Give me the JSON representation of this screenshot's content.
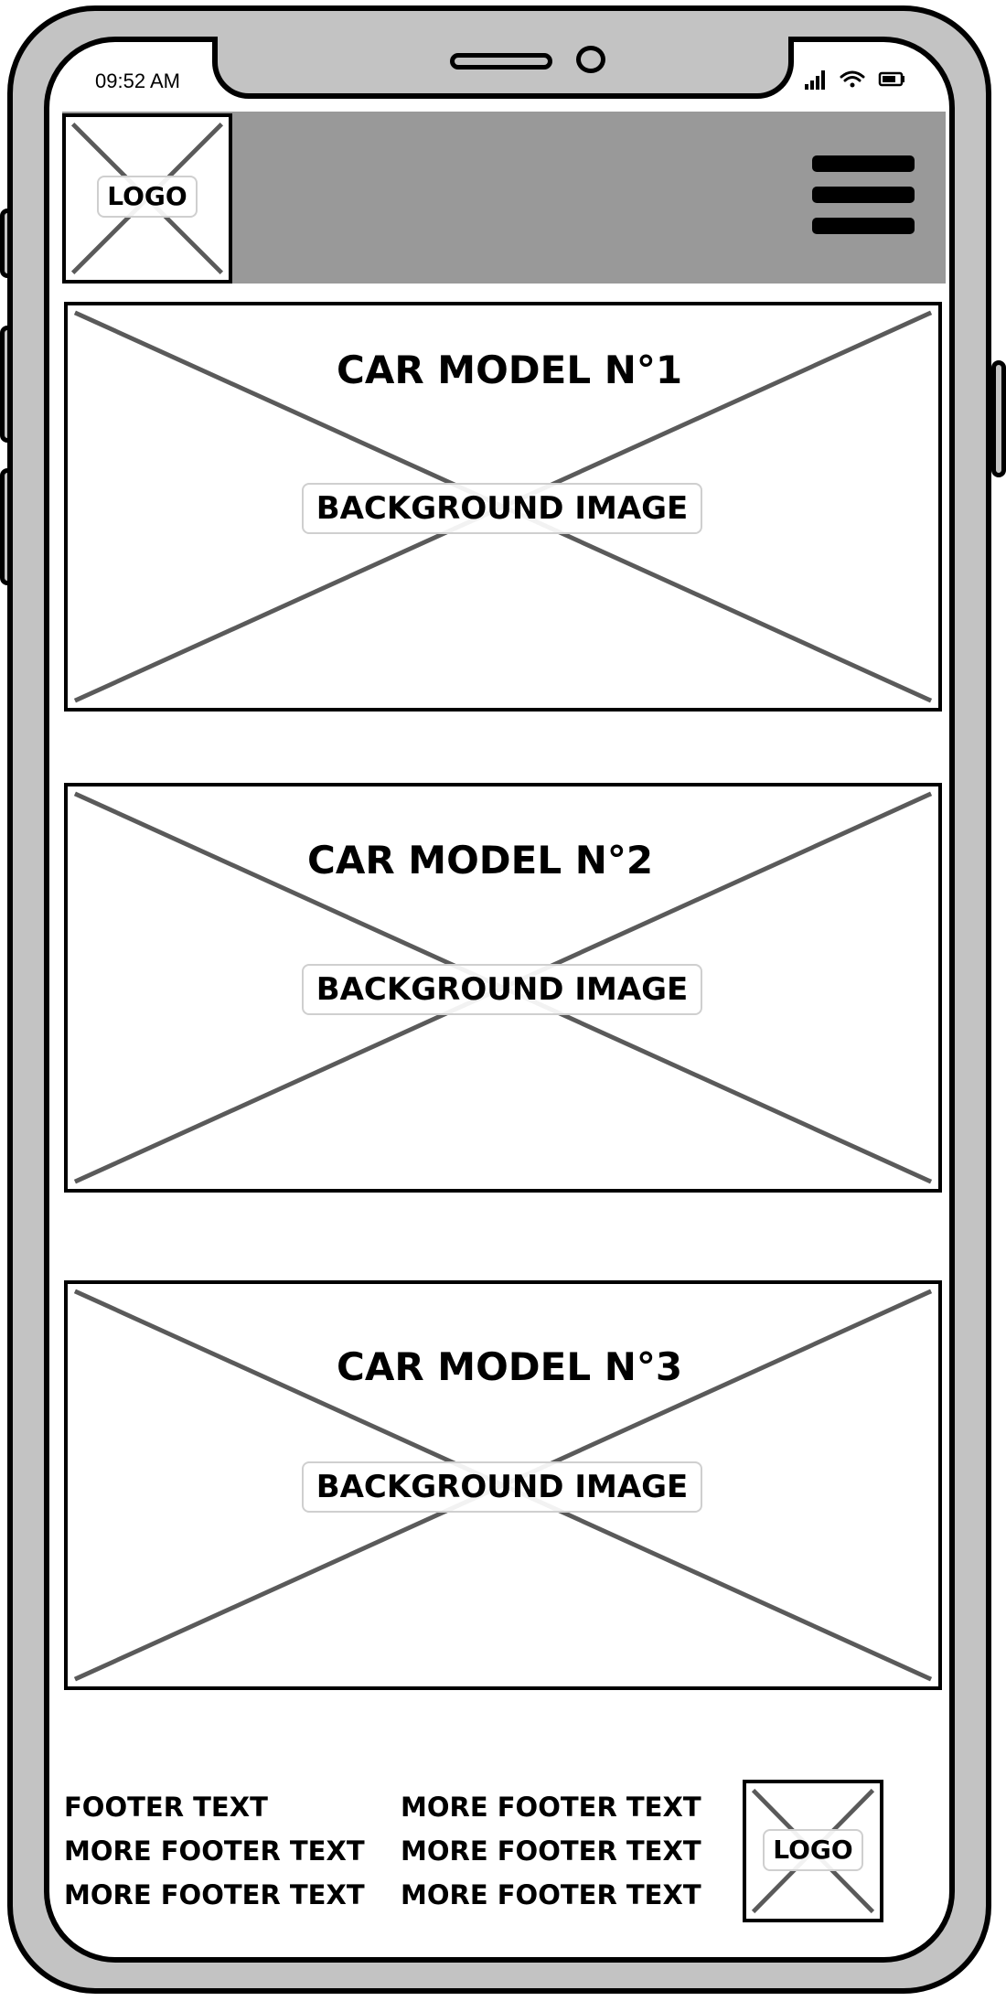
{
  "status_bar": {
    "time": "09:52 AM",
    "icons": [
      "signal-icon",
      "wifi-icon",
      "battery-icon"
    ]
  },
  "header": {
    "logo_label": "LOGO",
    "menu_icon": "hamburger-menu-icon",
    "background_color": "#999999"
  },
  "cards": [
    {
      "title": "CAR MODEL N°1",
      "image_label": "BACKGROUND IMAGE"
    },
    {
      "title": "CAR MODEL N°2",
      "image_label": "BACKGROUND IMAGE"
    },
    {
      "title": "CAR MODEL N°3",
      "image_label": "BACKGROUND IMAGE"
    }
  ],
  "footer": {
    "column1": [
      "FOOTER TEXT",
      "MORE FOOTER TEXT",
      "MORE FOOTER TEXT"
    ],
    "column2": [
      "MORE FOOTER TEXT",
      "MORE FOOTER TEXT",
      "MORE FOOTER TEXT"
    ],
    "logo_label": "LOGO"
  },
  "colors": {
    "phone_frame": "#c3c3c3",
    "outline": "#000000",
    "cross_lines": "#5a5a5a"
  }
}
